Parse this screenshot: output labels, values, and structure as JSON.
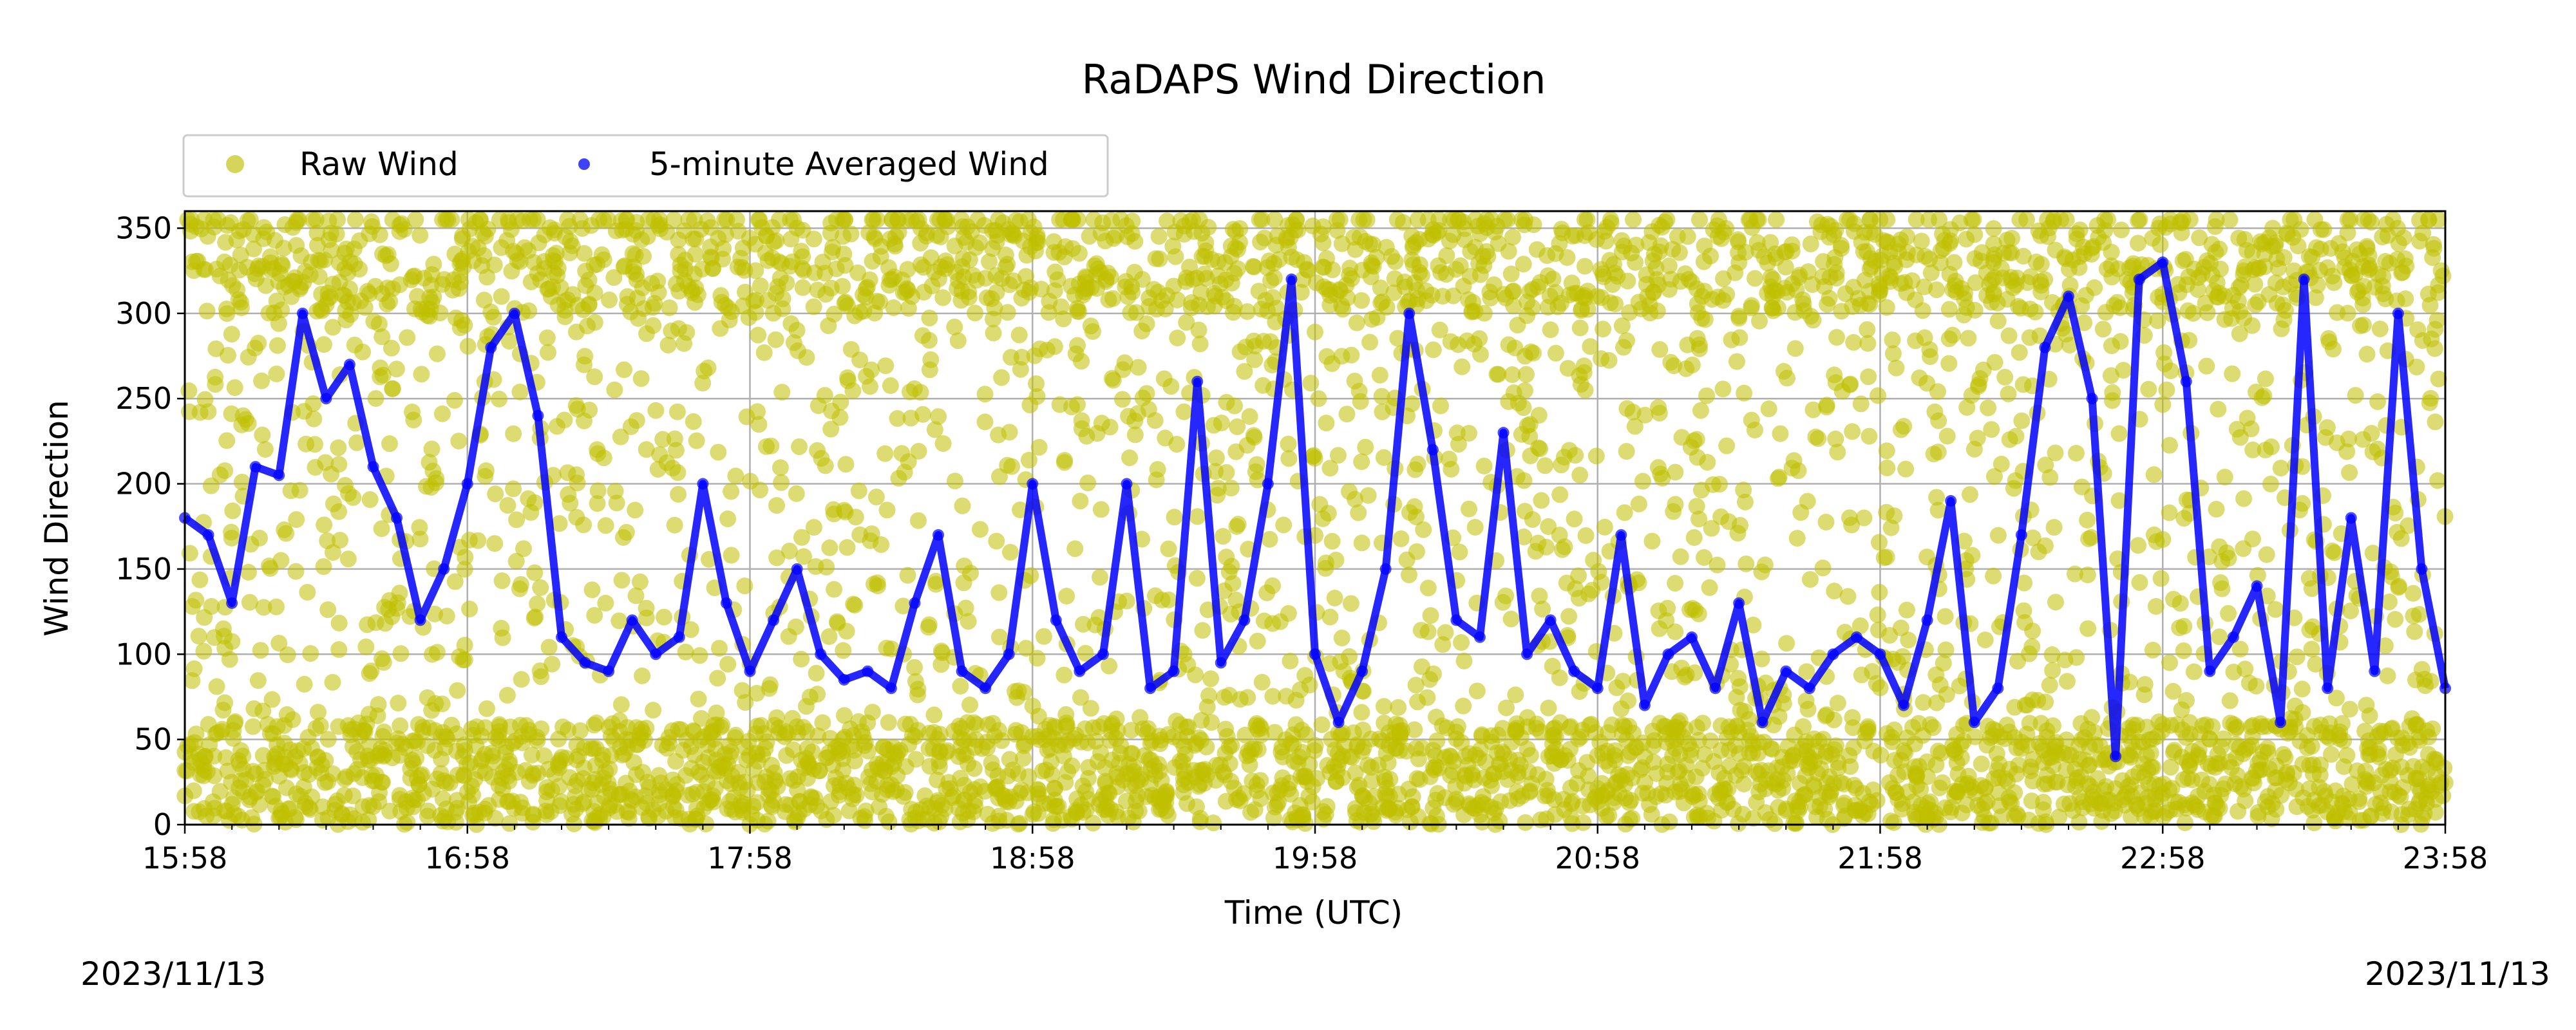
{
  "chart_data": {
    "type": "scatter",
    "title": "RaDAPS Wind Direction",
    "xlabel": "Time (UTC)",
    "ylabel": "Wind Direction",
    "xlim": [
      "15:58",
      "23:58"
    ],
    "ylim": [
      0,
      360
    ],
    "x_ticks": [
      "15:58",
      "16:58",
      "17:58",
      "18:58",
      "19:58",
      "20:58",
      "21:58",
      "22:58",
      "23:58"
    ],
    "y_ticks": [
      0,
      50,
      100,
      150,
      200,
      250,
      300,
      350
    ],
    "grid": true,
    "legend": {
      "placement": "top-left, above axes",
      "columns": 2
    },
    "date_left": "2023/11/13",
    "date_right": "2023/11/13",
    "series": [
      {
        "name": "Raw Wind",
        "marker": "circle",
        "color": "#bfbf00",
        "alpha": 0.55,
        "x_minutes_from_start": [
          0,
          5,
          10,
          15,
          20,
          25,
          30,
          35,
          40,
          45,
          50,
          55,
          60,
          65,
          70,
          75,
          80,
          85,
          90,
          95,
          100,
          105,
          110,
          115,
          120,
          125,
          130,
          135,
          140,
          145,
          150,
          155,
          160,
          165,
          170,
          175,
          180,
          185,
          190,
          195,
          200,
          205,
          210,
          215,
          220,
          225,
          230,
          235,
          240,
          245,
          250,
          255,
          260,
          265,
          270,
          275,
          280,
          285,
          290,
          295,
          300,
          305,
          310,
          315,
          320,
          325,
          330,
          335,
          340,
          345,
          350,
          355,
          360,
          365,
          370,
          375,
          380,
          385,
          390,
          395,
          400,
          405,
          410,
          415,
          420,
          425,
          430,
          435,
          440,
          445,
          450,
          455,
          460,
          465,
          470,
          475,
          480
        ],
        "values_summary": "dense scatter spanning 0–360 throughout the period"
      },
      {
        "name": "5-minute Averaged Wind",
        "marker": "circle",
        "color": "#0000ff",
        "alpha": 0.7,
        "times": [
          "15:58",
          "16:03",
          "16:08",
          "16:13",
          "16:18",
          "16:23",
          "16:28",
          "16:33",
          "16:38",
          "16:43",
          "16:48",
          "16:53",
          "16:58",
          "17:03",
          "17:08",
          "17:13",
          "17:18",
          "17:23",
          "17:28",
          "17:33",
          "17:38",
          "17:43",
          "17:48",
          "17:53",
          "17:58",
          "18:03",
          "18:08",
          "18:13",
          "18:18",
          "18:23",
          "18:28",
          "18:33",
          "18:38",
          "18:43",
          "18:48",
          "18:53",
          "18:58",
          "19:03",
          "19:08",
          "19:13",
          "19:18",
          "19:23",
          "19:28",
          "19:33",
          "19:38",
          "19:43",
          "19:48",
          "19:53",
          "19:58",
          "20:03",
          "20:08",
          "20:13",
          "20:18",
          "20:23",
          "20:28",
          "20:33",
          "20:38",
          "20:43",
          "20:48",
          "20:53",
          "20:58",
          "21:03",
          "21:08",
          "21:13",
          "21:18",
          "21:23",
          "21:28",
          "21:33",
          "21:38",
          "21:43",
          "21:48",
          "21:53",
          "21:58",
          "22:03",
          "22:08",
          "22:13",
          "22:18",
          "22:23",
          "22:28",
          "22:33",
          "22:38",
          "22:43",
          "22:48",
          "22:53",
          "22:58",
          "23:03",
          "23:08",
          "23:13",
          "23:18",
          "23:23",
          "23:28",
          "23:33",
          "23:38",
          "23:43",
          "23:48",
          "23:53",
          "23:58"
        ],
        "values": [
          180,
          170,
          130,
          210,
          205,
          300,
          250,
          270,
          210,
          180,
          120,
          150,
          200,
          280,
          300,
          240,
          110,
          95,
          90,
          120,
          100,
          110,
          200,
          130,
          90,
          120,
          150,
          100,
          85,
          90,
          80,
          130,
          170,
          90,
          80,
          100,
          200,
          120,
          90,
          100,
          200,
          80,
          90,
          260,
          95,
          120,
          200,
          320,
          100,
          60,
          90,
          150,
          300,
          220,
          120,
          110,
          230,
          100,
          120,
          90,
          80,
          170,
          70,
          100,
          110,
          80,
          130,
          60,
          90,
          80,
          100,
          110,
          100,
          70,
          120,
          190,
          60,
          80,
          170,
          280,
          310,
          250,
          40,
          320,
          330,
          260,
          90,
          110,
          140,
          60,
          320,
          80,
          180,
          90,
          300,
          150,
          80
        ]
      }
    ]
  }
}
